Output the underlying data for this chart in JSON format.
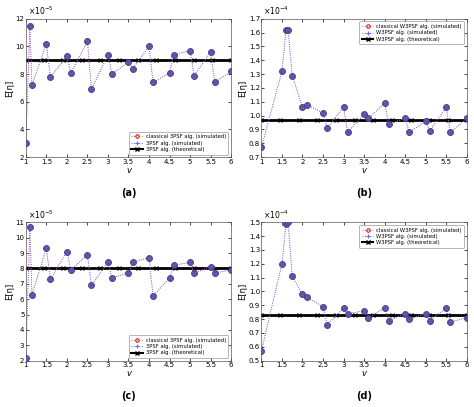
{
  "subplots": [
    {
      "label": "(a)",
      "ylabel": "E[η]",
      "xlabel": "v",
      "ylim": [
        2e-05,
        0.00012
      ],
      "ytick_scale": 1e-05,
      "yticks": [
        2,
        4,
        6,
        8,
        10,
        12
      ],
      "xlim": [
        1,
        6
      ],
      "xticks": [
        1,
        1.5,
        2,
        2.5,
        3,
        3.5,
        4,
        4.5,
        5,
        5.5,
        6
      ],
      "exponent": 5,
      "theoretical_y": 9e-05,
      "legend": [
        "classical 3PSF alg. (simulated)",
        "3PSF alg. (simulated)",
        "3PSF alg. (theoretical)"
      ],
      "leg_loc": "lower right",
      "sim_x": [
        1.0,
        1.1,
        1.15,
        1.5,
        1.6,
        2.0,
        2.1,
        2.5,
        2.6,
        3.0,
        3.1,
        3.5,
        3.6,
        4.0,
        4.1,
        4.5,
        4.6,
        5.0,
        5.1,
        5.5,
        5.6,
        6.0
      ],
      "sim1_y": [
        3e-05,
        0.000115,
        7.2e-05,
        0.000102,
        7.8e-05,
        9.3e-05,
        8.1e-05,
        0.000104,
        6.9e-05,
        9.4e-05,
        8e-05,
        8.9e-05,
        8.4e-05,
        0.0001,
        7.4e-05,
        8.1e-05,
        9.4e-05,
        9.7e-05,
        7.9e-05,
        9.6e-05,
        7.4e-05,
        8.2e-05
      ],
      "sim2_y": [
        3e-05,
        0.000115,
        7.2e-05,
        0.000102,
        7.8e-05,
        9.3e-05,
        8.1e-05,
        0.000104,
        6.9e-05,
        9.4e-05,
        8e-05,
        8.9e-05,
        8.4e-05,
        0.0001,
        7.4e-05,
        8.1e-05,
        9.4e-05,
        9.7e-05,
        7.9e-05,
        9.6e-05,
        7.4e-05,
        8.2e-05
      ]
    },
    {
      "label": "(b)",
      "ylabel": "E[η]",
      "xlabel": "v",
      "ylim": [
        7e-05,
        0.00017
      ],
      "ytick_scale": 0.0001,
      "yticks": [
        0.7,
        0.8,
        0.9,
        1.0,
        1.1,
        1.2,
        1.3,
        1.4,
        1.5,
        1.6,
        1.7
      ],
      "xlim": [
        1,
        6
      ],
      "xticks": [
        1,
        1.5,
        2,
        2.5,
        3,
        3.5,
        4,
        4.5,
        5,
        5.5,
        6
      ],
      "exponent": 4,
      "theoretical_y": 9.7e-05,
      "legend": [
        "classical W3PSF alg. (simulated)",
        "W3PSF alg. (simulated)",
        "W3PSF alg. (theoretical)"
      ],
      "leg_loc": "upper right",
      "sim_x": [
        1.0,
        1.5,
        1.6,
        1.65,
        1.75,
        2.0,
        2.1,
        2.5,
        2.6,
        3.0,
        3.1,
        3.5,
        3.6,
        4.0,
        4.1,
        4.5,
        4.6,
        5.0,
        5.1,
        5.5,
        5.6,
        6.0
      ],
      "sim1_y": [
        7.7e-05,
        0.000132,
        0.000162,
        0.000162,
        0.000129,
        0.000106,
        0.000108,
        0.000102,
        9.1e-05,
        0.000106,
        8.8e-05,
        0.000101,
        9.8e-05,
        0.000109,
        9.4e-05,
        9.8e-05,
        8.8e-05,
        9.6e-05,
        8.9e-05,
        0.000106,
        8.8e-05,
        9.8e-05
      ],
      "sim2_y": [
        7.7e-05,
        0.000132,
        0.000162,
        0.000162,
        0.000129,
        0.000106,
        0.000108,
        0.000102,
        9.1e-05,
        0.000106,
        8.8e-05,
        0.000101,
        9.8e-05,
        0.000109,
        9.4e-05,
        9.8e-05,
        8.8e-05,
        9.6e-05,
        8.9e-05,
        0.000106,
        8.8e-05,
        9.8e-05
      ]
    },
    {
      "label": "(c)",
      "ylabel": "E[η]",
      "xlabel": "v",
      "ylim": [
        2e-05,
        0.00011
      ],
      "ytick_scale": 1e-05,
      "yticks": [
        2,
        3,
        4,
        5,
        6,
        7,
        8,
        9,
        10,
        11
      ],
      "xlim": [
        1,
        6
      ],
      "xticks": [
        1,
        1.5,
        2,
        2.5,
        3,
        3.5,
        4,
        4.5,
        5,
        5.5,
        6
      ],
      "exponent": 5,
      "theoretical_y": 8e-05,
      "legend": [
        "classical 3PSF alg. (simulated)",
        "3PSF alg. (simulated)",
        "3PSF alg. (theoretical)"
      ],
      "leg_loc": "lower right",
      "sim_x": [
        1.0,
        1.1,
        1.15,
        1.5,
        1.6,
        2.0,
        2.1,
        2.5,
        2.6,
        3.0,
        3.1,
        3.5,
        3.6,
        4.0,
        4.1,
        4.5,
        4.6,
        5.0,
        5.1,
        5.5,
        5.6,
        6.0
      ],
      "sim1_y": [
        2.2e-05,
        0.000107,
        6.3e-05,
        9.3e-05,
        7.3e-05,
        9.1e-05,
        7.9e-05,
        8.9e-05,
        6.9e-05,
        8.4e-05,
        7.4e-05,
        7.7e-05,
        8.4e-05,
        8.7e-05,
        6.2e-05,
        7.4e-05,
        8.2e-05,
        8.4e-05,
        7.7e-05,
        8.1e-05,
        7.7e-05,
        7.9e-05
      ],
      "sim2_y": [
        2.2e-05,
        0.000107,
        6.3e-05,
        9.3e-05,
        7.3e-05,
        9.1e-05,
        7.9e-05,
        8.9e-05,
        6.9e-05,
        8.4e-05,
        7.4e-05,
        7.7e-05,
        8.4e-05,
        8.7e-05,
        6.2e-05,
        7.4e-05,
        8.2e-05,
        8.4e-05,
        7.7e-05,
        8.1e-05,
        7.7e-05,
        7.9e-05
      ]
    },
    {
      "label": "(d)",
      "ylabel": "E[η]",
      "xlabel": "v",
      "ylim": [
        5e-05,
        0.00015
      ],
      "ytick_scale": 0.0001,
      "yticks": [
        0.5,
        0.6,
        0.7,
        0.8,
        0.9,
        1.0,
        1.1,
        1.2,
        1.3,
        1.4,
        1.5
      ],
      "xlim": [
        1,
        6
      ],
      "xticks": [
        1,
        1.5,
        2,
        2.5,
        3,
        3.5,
        4,
        4.5,
        5,
        5.5,
        6
      ],
      "exponent": 4,
      "theoretical_y": 8.3e-05,
      "legend": [
        "classical W3PSF alg. (simulated)",
        "W3PSF alg. (simulated)",
        "W3PSF alg. (theoretical)"
      ],
      "leg_loc": "upper right",
      "sim_x": [
        1.0,
        1.5,
        1.6,
        1.65,
        1.75,
        2.0,
        2.1,
        2.5,
        2.6,
        3.0,
        3.1,
        3.5,
        3.6,
        4.0,
        4.1,
        4.5,
        4.6,
        5.0,
        5.1,
        5.5,
        5.6,
        6.0
      ],
      "sim1_y": [
        5.7e-05,
        0.00012,
        0.000149,
        0.00015,
        0.000111,
        9.8e-05,
        9.6e-05,
        8.9e-05,
        7.6e-05,
        8.8e-05,
        8.4e-05,
        8.6e-05,
        8.1e-05,
        8.8e-05,
        7.9e-05,
        8.4e-05,
        8e-05,
        8.4e-05,
        7.9e-05,
        8.8e-05,
        7.8e-05,
        8.1e-05
      ],
      "sim2_y": [
        5.7e-05,
        0.00012,
        0.000149,
        0.00015,
        0.000111,
        9.8e-05,
        9.6e-05,
        8.9e-05,
        7.6e-05,
        8.8e-05,
        8.4e-05,
        8.6e-05,
        8.1e-05,
        8.8e-05,
        7.9e-05,
        8.4e-05,
        8e-05,
        8.4e-05,
        7.9e-05,
        8.8e-05,
        7.8e-05,
        8.1e-05
      ]
    }
  ],
  "color_sim1_line": "#FF6666",
  "color_sim1_marker": "#CC0000",
  "color_sim2_line": "#6666FF",
  "color_sim2_marker": "#0000CC",
  "color_purple_fill": "#5555AA",
  "color_purple_edge": "#333388",
  "color_theoretical": "#000000",
  "bg_color": "#FFFFFF",
  "figure_bg": "#FFFFFF",
  "axes_bg": "#FFFFFF"
}
